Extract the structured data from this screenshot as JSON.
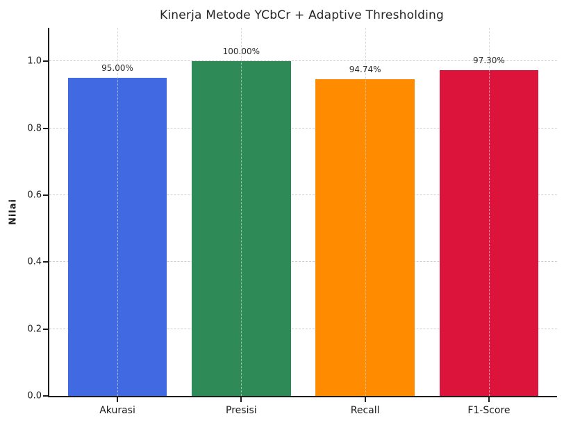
{
  "chart_data": {
    "type": "bar",
    "title": "Kinerja Metode YCbCr + Adaptive Thresholding",
    "xlabel": "",
    "ylabel": "Nilai",
    "categories": [
      "Akurasi",
      "Presisi",
      "Recall",
      "F1-Score"
    ],
    "values": [
      0.95,
      1.0,
      0.9474,
      0.973
    ],
    "value_labels": [
      "95.00%",
      "100.00%",
      "94.74%",
      "97.30%"
    ],
    "bar_colors": [
      "#4169E1",
      "#2E8B57",
      "#FF8C00",
      "#DC143C"
    ],
    "ylim": [
      0,
      1.1
    ],
    "yticks": [
      0.0,
      0.2,
      0.4,
      0.6,
      0.8,
      1.0
    ],
    "ytick_labels": [
      "0.0",
      "0.2",
      "0.4",
      "0.6",
      "0.8",
      "1.0"
    ],
    "bar_width_fraction": 0.8,
    "grid": "dashed, horizontal at yticks and vertical at bar centers",
    "legend": "none",
    "colors": {
      "axis": "#1c1c1c",
      "grid": "#cdcdcd",
      "title_text": "#262626",
      "tick_text": "#1a1a1a",
      "background": "#ffffff"
    }
  }
}
